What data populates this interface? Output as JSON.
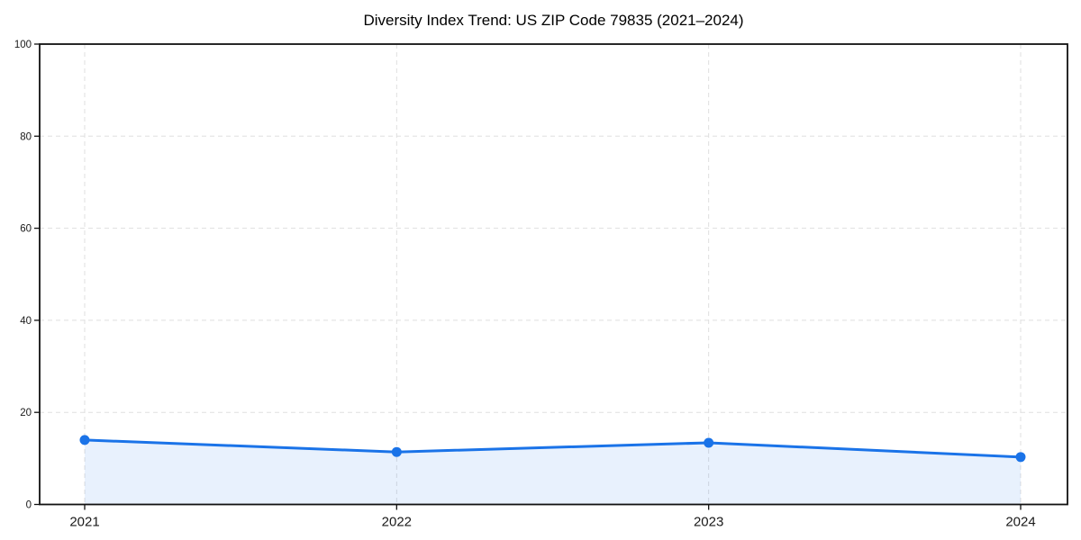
{
  "page": {
    "background": "#ffffff"
  },
  "chart_data": {
    "type": "area",
    "title": "Diversity Index Trend: US ZIP Code 79835 (2021–2024)",
    "categories": [
      "2021",
      "2022",
      "2023",
      "2024"
    ],
    "series": [
      {
        "name": "Diversity Index",
        "values": [
          14.0,
          11.4,
          13.4,
          10.3
        ]
      }
    ],
    "xlabel": "",
    "ylabel": "",
    "ylim": [
      0,
      100
    ],
    "yticks": [
      0,
      20,
      40,
      60,
      80,
      100
    ],
    "grid": {
      "style": "dashed",
      "horizontal": true,
      "vertical": true
    },
    "legend": "none",
    "marker": "circle",
    "colors": {
      "line": "#1a73e8",
      "marker": "#1a73e8",
      "area_fill": "rgba(26,115,232,0.10)",
      "grid": "#dfdfdf",
      "axis": "#111111",
      "tick_label": "#1a1a1a",
      "title": "#000000",
      "background": "#ffffff"
    }
  }
}
